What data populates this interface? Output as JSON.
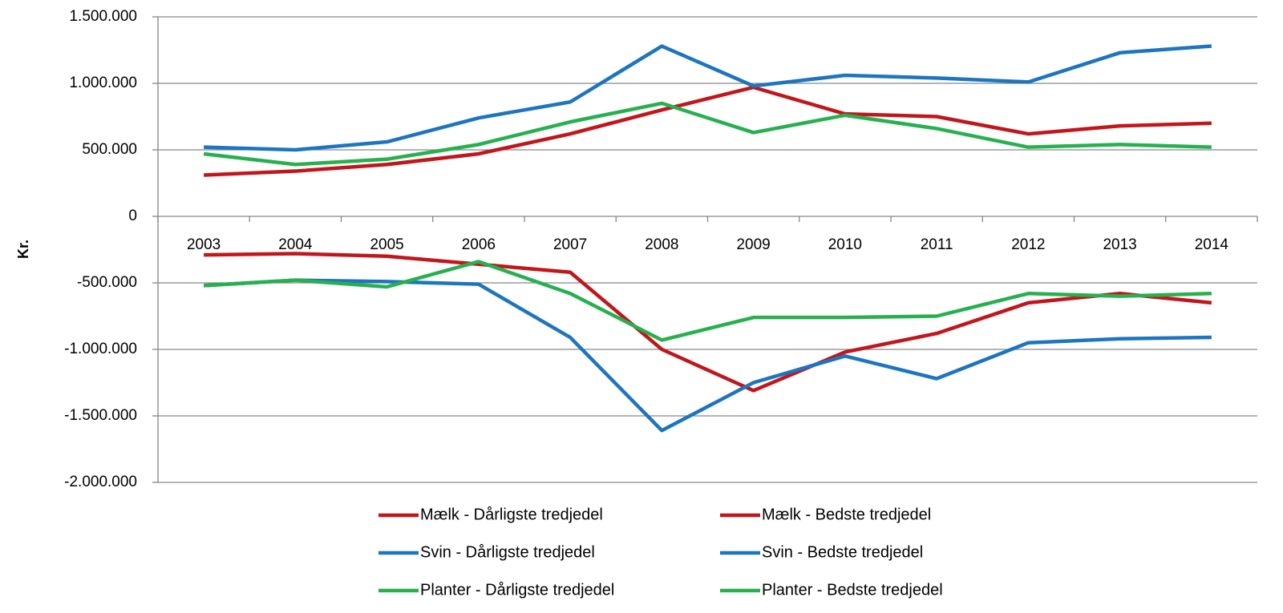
{
  "chart_data": {
    "type": "line",
    "y_label": "Kr.",
    "categories": [
      "2003",
      "2004",
      "2005",
      "2006",
      "2007",
      "2008",
      "2009",
      "2010",
      "2011",
      "2012",
      "2013",
      "2014"
    ],
    "series": [
      {
        "name": "Mælk - Dårligste tredjedel",
        "color": "#c0161c",
        "values": [
          -290000,
          -280000,
          -300000,
          -360000,
          -420000,
          -1000000,
          -1310000,
          -1020000,
          -880000,
          -650000,
          -580000,
          -650000
        ]
      },
      {
        "name": "Mælk - Bedste tredjedel",
        "color": "#c0161c",
        "values": [
          310000,
          340000,
          390000,
          470000,
          620000,
          800000,
          970000,
          770000,
          750000,
          620000,
          680000,
          700000
        ]
      },
      {
        "name": "Svin - Dårligste tredjedel",
        "color": "#1d75c0",
        "values": [
          -520000,
          -480000,
          -490000,
          -510000,
          -910000,
          -1610000,
          -1250000,
          -1050000,
          -1220000,
          -950000,
          -920000,
          -910000
        ]
      },
      {
        "name": "Svin - Bedste tredjedel",
        "color": "#1d75c0",
        "values": [
          520000,
          500000,
          560000,
          740000,
          860000,
          1280000,
          980000,
          1060000,
          1040000,
          1010000,
          1230000,
          1280000
        ]
      },
      {
        "name": "Planter - Dårligste tredjedel",
        "color": "#27b04f",
        "values": [
          -520000,
          -480000,
          -530000,
          -340000,
          -580000,
          -930000,
          -760000,
          -760000,
          -750000,
          -580000,
          -600000,
          -580000
        ]
      },
      {
        "name": "Planter - Bedste tredjedel",
        "color": "#27b04f",
        "values": [
          470000,
          390000,
          430000,
          540000,
          710000,
          850000,
          630000,
          760000,
          660000,
          520000,
          540000,
          520000
        ]
      }
    ],
    "ylim": [
      -2000000,
      1500000
    ],
    "yticks": [
      {
        "value": -2000000,
        "label": "-2.000.000"
      },
      {
        "value": -1500000,
        "label": "-1.500.000"
      },
      {
        "value": -1000000,
        "label": "-1.000.000"
      },
      {
        "value": -500000,
        "label": "-500.000"
      },
      0,
      {
        "value": 500000,
        "label": "500.000"
      },
      {
        "value": 1000000,
        "label": "1.000.000"
      },
      {
        "value": 1500000,
        "label": "1.500.000"
      }
    ],
    "grid": true
  }
}
